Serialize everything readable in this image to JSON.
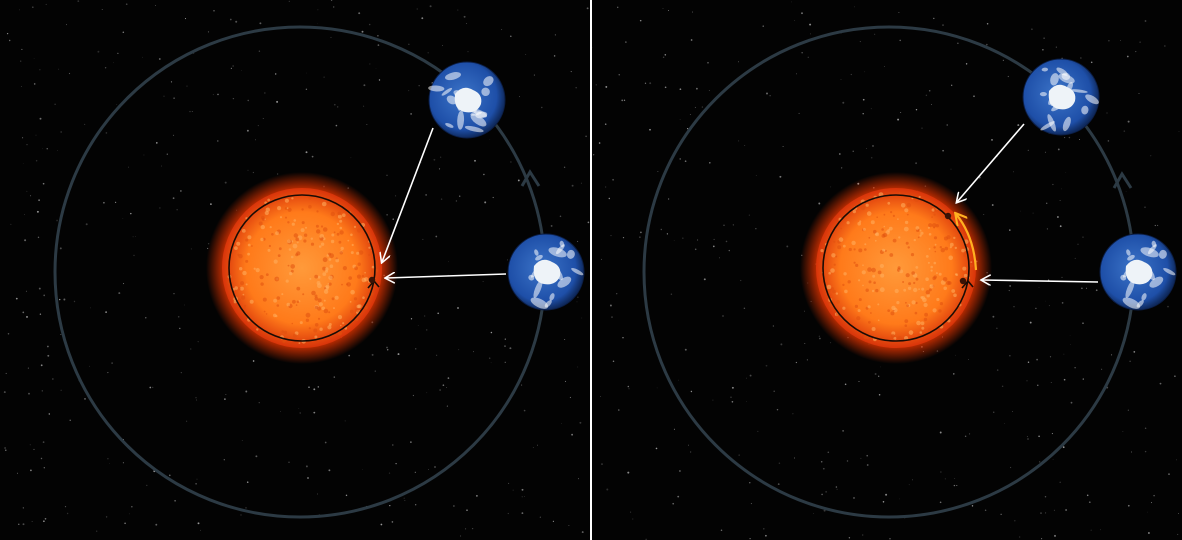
{
  "diagram": {
    "panels": [
      {
        "id": "left",
        "description_objects": [
          "sun",
          "earth-upper",
          "earth-right",
          "orbit",
          "sun-rotation-arrow",
          "line-of-sight-arrows",
          "sunspot"
        ],
        "highlight_arc": false
      },
      {
        "id": "right",
        "description_objects": [
          "sun",
          "earth-upper",
          "earth-right",
          "orbit",
          "sun-rotation-arrow",
          "line-of-sight-arrows",
          "sunspot",
          "highlight-arc"
        ],
        "highlight_arc": true
      }
    ],
    "colors": {
      "space": "#030303",
      "orbit": "#2c3a44",
      "sun_core": "#ff7a1a",
      "sun_edge": "#d8340a",
      "sun_glow": "#ff3a00",
      "rotation_ring": "#1a0c05",
      "arrow": "#ffffff",
      "highlight_arc": "#ffb020",
      "ocean": "#1e4fa8",
      "ice": "#eef3f8"
    },
    "icons": [
      "sun-icon",
      "earth-icon",
      "orbit-arrow-icon",
      "rotation-arrow-icon",
      "sight-line-arrow-icon"
    ]
  }
}
